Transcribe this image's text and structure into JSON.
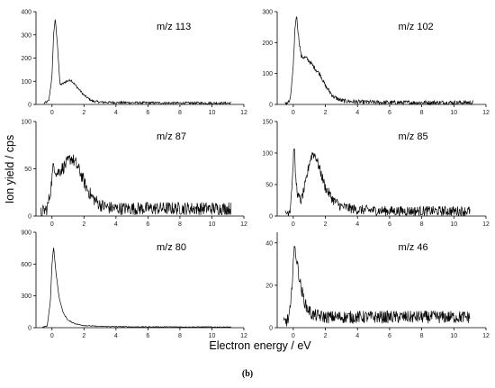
{
  "figure": {
    "ylabel": "Ion yield / cps",
    "xlabel": "Electron energy / eV",
    "caption": "(b)"
  },
  "chart_data": [
    {
      "type": "line",
      "title": "m/z 113",
      "xlim": [
        -1,
        12
      ],
      "ylim": [
        0,
        400
      ],
      "xticks": [
        0,
        2,
        4,
        6,
        8,
        10,
        12
      ],
      "yticks": [
        0,
        100,
        200,
        300,
        400
      ],
      "x_points": [
        -0.5,
        -0.2,
        0.0,
        0.1,
        0.2,
        0.35,
        0.5,
        0.7,
        0.9,
        1.2,
        1.5,
        2.0,
        2.5,
        3.0,
        4.0,
        6.0,
        8.0,
        10.0,
        11.2
      ],
      "y_points": [
        5,
        15,
        120,
        300,
        370,
        250,
        85,
        90,
        100,
        105,
        80,
        40,
        15,
        10,
        8,
        7,
        6,
        6,
        6
      ],
      "noise": 5
    },
    {
      "type": "line",
      "title": "m/z 102",
      "xlim": [
        -1,
        12
      ],
      "ylim": [
        0,
        300
      ],
      "xticks": [
        0,
        2,
        4,
        6,
        8,
        10,
        12
      ],
      "yticks": [
        0,
        100,
        200,
        300
      ],
      "x_points": [
        -0.5,
        -0.2,
        0.0,
        0.1,
        0.2,
        0.35,
        0.5,
        0.8,
        1.0,
        1.3,
        1.7,
        2.0,
        2.5,
        3.0,
        4.0,
        6.0,
        8.0,
        10.0,
        11.2
      ],
      "y_points": [
        3,
        10,
        120,
        240,
        290,
        210,
        155,
        150,
        140,
        120,
        95,
        60,
        25,
        12,
        8,
        6,
        6,
        6,
        6
      ],
      "noise": 7
    },
    {
      "type": "line",
      "title": "m/z 87",
      "xlim": [
        -1,
        12
      ],
      "ylim": [
        0,
        100
      ],
      "xticks": [
        0,
        2,
        4,
        6,
        8,
        10,
        12
      ],
      "yticks": [
        0,
        50,
        100
      ],
      "x_points": [
        -0.7,
        -0.3,
        -0.1,
        0.1,
        0.3,
        0.6,
        0.9,
        1.2,
        1.5,
        1.8,
        2.1,
        2.5,
        3.0,
        3.5,
        4.0,
        6.0,
        8.0,
        10.0,
        11.2
      ],
      "y_points": [
        3,
        8,
        25,
        55,
        45,
        50,
        55,
        62,
        55,
        45,
        32,
        20,
        12,
        9,
        8,
        8,
        8,
        8,
        8
      ],
      "noise": 7
    },
    {
      "type": "line",
      "title": "m/z 85",
      "xlim": [
        -1,
        12
      ],
      "ylim": [
        0,
        150
      ],
      "xticks": [
        0,
        2,
        4,
        6,
        8,
        10,
        12
      ],
      "yticks": [
        0,
        50,
        100,
        150
      ],
      "x_points": [
        -0.5,
        -0.2,
        -0.05,
        0.05,
        0.15,
        0.3,
        0.5,
        0.8,
        1.0,
        1.2,
        1.4,
        1.7,
        2.0,
        2.5,
        3.0,
        4.0,
        6.0,
        8.0,
        10.0,
        11.0
      ],
      "y_points": [
        3,
        10,
        60,
        115,
        60,
        30,
        25,
        55,
        85,
        100,
        95,
        70,
        45,
        25,
        15,
        10,
        8,
        8,
        8,
        8
      ],
      "noise": 8
    },
    {
      "type": "line",
      "title": "m/z 80",
      "xlim": [
        -1,
        12
      ],
      "ylim": [
        0,
        900
      ],
      "xticks": [
        0,
        2,
        4,
        6,
        8,
        10,
        12
      ],
      "yticks": [
        0,
        300,
        600,
        900
      ],
      "x_points": [
        -0.6,
        -0.3,
        -0.1,
        0.0,
        0.1,
        0.25,
        0.45,
        0.7,
        1.0,
        1.5,
        2.0,
        3.0,
        5.0,
        8.0,
        11.2
      ],
      "y_points": [
        3,
        15,
        250,
        600,
        760,
        520,
        280,
        140,
        70,
        35,
        20,
        12,
        8,
        7,
        6
      ],
      "noise": 4
    },
    {
      "type": "line",
      "title": "m/z 46",
      "xlim": [
        -1,
        12
      ],
      "ylim": [
        0,
        45
      ],
      "xticks": [
        0,
        2,
        4,
        6,
        8,
        10,
        12
      ],
      "yticks": [
        0,
        20,
        40
      ],
      "x_points": [
        -0.6,
        -0.3,
        -0.15,
        0.0,
        0.1,
        0.25,
        0.5,
        0.8,
        1.2,
        2.0,
        4.0,
        6.0,
        8.0,
        10.0,
        11.0
      ],
      "y_points": [
        2,
        4,
        10,
        32,
        38,
        30,
        18,
        10,
        6,
        5,
        5,
        5,
        5,
        5,
        5
      ],
      "noise": 3
    }
  ]
}
